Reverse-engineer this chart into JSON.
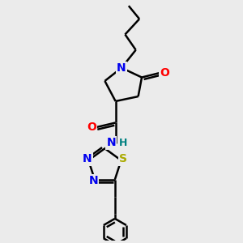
{
  "background_color": "#ebebeb",
  "bond_color": "#000000",
  "bond_width": 1.8,
  "atom_colors": {
    "N": "#0000ee",
    "O": "#ff0000",
    "S": "#aaaa00",
    "H": "#008080",
    "C": "#000000"
  },
  "font_size_atom": 10
}
